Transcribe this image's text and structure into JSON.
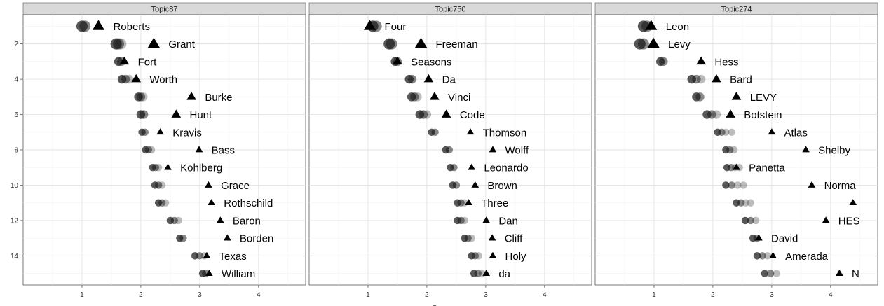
{
  "chart_data": {
    "type": "scatter",
    "x_ticks": [
      1,
      2,
      3,
      4
    ],
    "y_ticks": [
      2,
      4,
      6,
      8,
      10,
      12,
      14
    ],
    "xlim": [
      0.0,
      4.8
    ],
    "ylim": [
      15.65,
      0.35
    ],
    "grid": true,
    "xlabel_partial": "S",
    "panels": [
      {
        "title": "Topic87",
        "words": [
          {
            "label": "Roberts",
            "rank": 1,
            "x": 1.28,
            "dots": [
              1.0,
              1.05
            ]
          },
          {
            "label": "Grant",
            "rank": 2,
            "x": 2.22,
            "dots": [
              1.58,
              1.62,
              1.66
            ]
          },
          {
            "label": "Fort",
            "rank": 3,
            "x": 1.72,
            "dots": [
              1.62,
              1.67
            ]
          },
          {
            "label": "Worth",
            "rank": 4,
            "x": 1.92,
            "dots": [
              1.68,
              1.74,
              1.8
            ]
          },
          {
            "label": "Burke",
            "rank": 5,
            "x": 2.86,
            "dots": [
              1.96,
              2.0,
              2.04
            ]
          },
          {
            "label": "Hunt",
            "rank": 6,
            "x": 2.6,
            "dots": [
              2.0,
              2.05
            ]
          },
          {
            "label": "Kravis",
            "rank": 7,
            "x": 2.33,
            "dots": [
              2.02,
              2.07
            ]
          },
          {
            "label": "Bass",
            "rank": 8,
            "x": 2.99,
            "dots": [
              2.08,
              2.13,
              2.18
            ]
          },
          {
            "label": "Kohlberg",
            "rank": 9,
            "x": 2.46,
            "dots": [
              2.2,
              2.25,
              2.3
            ]
          },
          {
            "label": "Grace",
            "rank": 10,
            "x": 3.15,
            "dots": [
              2.24,
              2.3,
              2.36
            ]
          },
          {
            "label": "Rothschild",
            "rank": 11,
            "x": 3.2,
            "dots": [
              2.3,
              2.36,
              2.42
            ]
          },
          {
            "label": "Baron",
            "rank": 12,
            "x": 3.35,
            "dots": [
              2.5,
              2.57,
              2.64
            ]
          },
          {
            "label": "Borden",
            "rank": 13,
            "x": 3.47,
            "dots": [
              2.66,
              2.72
            ]
          },
          {
            "label": "Texas",
            "rank": 14,
            "x": 3.12,
            "dots": [
              2.92,
              3.0,
              3.08
            ]
          },
          {
            "label": "William",
            "rank": 15,
            "x": 3.16,
            "dots": [
              3.05,
              3.1
            ]
          }
        ]
      },
      {
        "title": "Topic750",
        "words": [
          {
            "label": "Four",
            "rank": 1,
            "x": 1.03,
            "dots": [
              1.08,
              1.14
            ]
          },
          {
            "label": "Freeman",
            "rank": 2,
            "x": 1.9,
            "dots": [
              1.36,
              1.4
            ]
          },
          {
            "label": "Seasons",
            "rank": 3,
            "x": 1.5,
            "dots": [
              1.46,
              1.5
            ]
          },
          {
            "label": "Da",
            "rank": 4,
            "x": 2.03,
            "dots": [
              1.7,
              1.75
            ]
          },
          {
            "label": "Vinci",
            "rank": 5,
            "x": 2.13,
            "dots": [
              1.74,
              1.79,
              1.84
            ]
          },
          {
            "label": "Code",
            "rank": 6,
            "x": 2.33,
            "dots": [
              1.88,
              1.94,
              2.0
            ]
          },
          {
            "label": "Thomson",
            "rank": 7,
            "x": 2.74,
            "dots": [
              2.08,
              2.14
            ]
          },
          {
            "label": "Wolff",
            "rank": 8,
            "x": 3.12,
            "dots": [
              2.32,
              2.38
            ]
          },
          {
            "label": "Leonardo",
            "rank": 9,
            "x": 2.76,
            "dots": [
              2.4,
              2.46
            ]
          },
          {
            "label": "Brown",
            "rank": 10,
            "x": 2.82,
            "dots": [
              2.44,
              2.5
            ]
          },
          {
            "label": "Three",
            "rank": 11,
            "x": 2.71,
            "dots": [
              2.52,
              2.58,
              2.64
            ]
          },
          {
            "label": "Dan",
            "rank": 12,
            "x": 3.01,
            "dots": [
              2.52,
              2.58,
              2.64
            ]
          },
          {
            "label": "Cliff",
            "rank": 13,
            "x": 3.11,
            "dots": [
              2.64,
              2.7,
              2.76
            ]
          },
          {
            "label": "Holy",
            "rank": 14,
            "x": 3.12,
            "dots": [
              2.76,
              2.82,
              2.88
            ]
          },
          {
            "label": "da",
            "rank": 15,
            "x": 3.01,
            "dots": [
              2.8,
              2.87,
              2.94
            ]
          }
        ]
      },
      {
        "title": "Topic274",
        "words": [
          {
            "label": "Leon",
            "rank": 1,
            "x": 0.95,
            "dots": [
              0.82,
              0.88
            ]
          },
          {
            "label": "Levy",
            "rank": 2,
            "x": 0.99,
            "dots": [
              0.76,
              0.82
            ]
          },
          {
            "label": "Hess",
            "rank": 3,
            "x": 1.8,
            "dots": [
              1.11,
              1.16
            ]
          },
          {
            "label": "Bard",
            "rank": 4,
            "x": 2.06,
            "dots": [
              1.64,
              1.72,
              1.8
            ]
          },
          {
            "label": "LEVY",
            "rank": 5,
            "x": 2.4,
            "dots": [
              1.72,
              1.78
            ]
          },
          {
            "label": "Botstein",
            "rank": 6,
            "x": 2.3,
            "dots": [
              1.9,
              1.98,
              2.06
            ]
          },
          {
            "label": "Atlas",
            "rank": 7,
            "x": 3.0,
            "dots": [
              2.08,
              2.15,
              2.22,
              2.32
            ]
          },
          {
            "label": "Shelby",
            "rank": 8,
            "x": 3.58,
            "dots": [
              2.22,
              2.29,
              2.36
            ]
          },
          {
            "label": "Panetta",
            "rank": 9,
            "x": 2.4,
            "dots": [
              2.24,
              2.31,
              2.38,
              2.45
            ]
          },
          {
            "label": "Norma",
            "rank": 10,
            "x": 3.68,
            "dots": [
              2.22,
              2.32,
              2.42,
              2.52
            ]
          },
          {
            "label": "",
            "rank": 11,
            "x": 4.38,
            "dots": [
              2.4,
              2.48,
              2.56,
              2.64
            ]
          },
          {
            "label": "HES",
            "rank": 12,
            "x": 3.92,
            "dots": [
              2.55,
              2.64,
              2.73
            ]
          },
          {
            "label": "David",
            "rank": 13,
            "x": 2.78,
            "dots": [
              2.68,
              2.75
            ]
          },
          {
            "label": "Amerada",
            "rank": 14,
            "x": 3.02,
            "dots": [
              2.75,
              2.84,
              2.93
            ]
          },
          {
            "label": "N",
            "rank": 15,
            "x": 4.15,
            "dots": [
              2.88,
              2.98,
              3.08
            ]
          }
        ]
      }
    ]
  }
}
